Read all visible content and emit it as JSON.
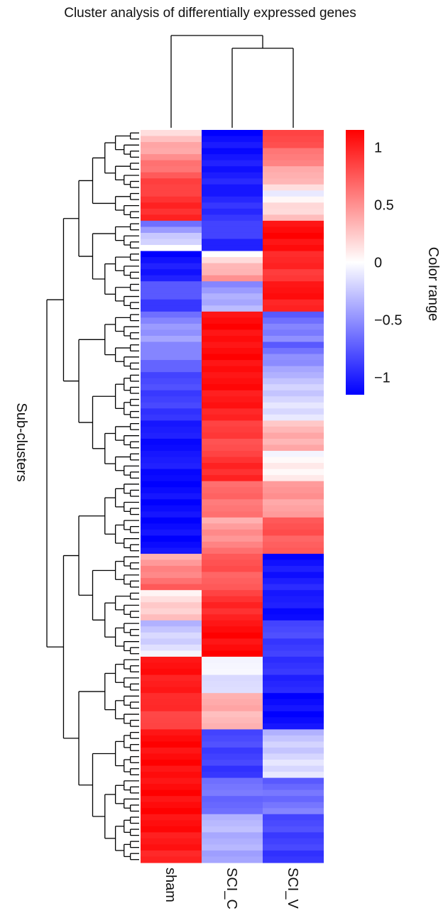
{
  "chart_data": {
    "type": "heatmap",
    "title": "Cluster analysis of differentially expressed genes",
    "ylabel": "Sub-clusters",
    "columns": [
      "sham",
      "SCI_C",
      "SCI_V"
    ],
    "color_scale": {
      "label": "Color range",
      "min": -1.15,
      "max": 1.15,
      "ticks": [
        1,
        0.5,
        0,
        -0.5,
        -1
      ],
      "tick_labels": [
        "1",
        "0.5",
        "0",
        "−0.5",
        "−1"
      ],
      "low_color": "#0000ff",
      "mid_color": "#ffffff",
      "high_color": "#ff0000"
    },
    "row_blocks": [
      {
        "rows": 10,
        "sham": [
          0.2,
          0.9
        ],
        "SCI_C": [
          -1.1,
          -1.0
        ],
        "SCI_V": [
          0.9,
          0.2
        ]
      },
      {
        "rows": 5,
        "sham": [
          0.9,
          1.0
        ],
        "SCI_C": [
          -1.0,
          -0.9
        ],
        "SCI_V": [
          -0.05,
          0.3
        ]
      },
      {
        "rows": 5,
        "sham": [
          -0.6,
          0.0
        ],
        "SCI_C": [
          -0.8,
          -1.0
        ],
        "SCI_V": [
          1.1,
          1.1
        ]
      },
      {
        "rows": 5,
        "sham": [
          -1.1,
          -1.0
        ],
        "SCI_C": [
          0.05,
          0.5
        ],
        "SCI_V": [
          1.0,
          0.9
        ]
      },
      {
        "rows": 5,
        "sham": [
          -0.7,
          -0.9
        ],
        "SCI_C": [
          -0.5,
          -0.3
        ],
        "SCI_V": [
          1.1,
          1.0
        ]
      },
      {
        "rows": 5,
        "sham": [
          -0.6,
          -0.4
        ],
        "SCI_C": [
          1.1,
          1.1
        ],
        "SCI_V": [
          -0.7,
          -0.5
        ]
      },
      {
        "rows": 5,
        "sham": [
          -0.5,
          -0.7
        ],
        "SCI_C": [
          1.1,
          1.1
        ],
        "SCI_V": [
          -0.7,
          -0.4
        ]
      },
      {
        "rows": 8,
        "sham": [
          -0.8,
          -0.9
        ],
        "SCI_C": [
          1.1,
          1.0
        ],
        "SCI_V": [
          -0.3,
          -0.1
        ]
      },
      {
        "rows": 5,
        "sham": [
          -1.0,
          -1.1
        ],
        "SCI_C": [
          0.9,
          0.8
        ],
        "SCI_V": [
          0.3,
          0.4
        ]
      },
      {
        "rows": 5,
        "sham": [
          -1.0,
          -1.1
        ],
        "SCI_C": [
          0.9,
          1.0
        ],
        "SCI_V": [
          0.0,
          0.1
        ]
      },
      {
        "rows": 6,
        "sham": [
          -1.1,
          -1.1
        ],
        "SCI_C": [
          0.7,
          0.6
        ],
        "SCI_V": [
          0.5,
          0.4
        ]
      },
      {
        "rows": 6,
        "sham": [
          -1.1,
          -1.1
        ],
        "SCI_C": [
          0.4,
          0.6
        ],
        "SCI_V": [
          0.8,
          0.7
        ]
      },
      {
        "rows": 6,
        "sham": [
          0.4,
          0.7
        ],
        "SCI_C": [
          0.8,
          0.7
        ],
        "SCI_V": [
          -1.1,
          -1.0
        ]
      },
      {
        "rows": 5,
        "sham": [
          0.1,
          0.3
        ],
        "SCI_C": [
          0.9,
          1.0
        ],
        "SCI_V": [
          -1.0,
          -1.1
        ]
      },
      {
        "rows": 6,
        "sham": [
          -0.3,
          -0.1
        ],
        "SCI_C": [
          1.1,
          1.1
        ],
        "SCI_V": [
          -0.8,
          -0.9
        ]
      },
      {
        "rows": 6,
        "sham": [
          1.1,
          1.0
        ],
        "SCI_C": [
          0.0,
          -0.2
        ],
        "SCI_V": [
          -0.9,
          -1.0
        ]
      },
      {
        "rows": 6,
        "sham": [
          1.0,
          0.8
        ],
        "SCI_C": [
          0.4,
          0.3
        ],
        "SCI_V": [
          -1.1,
          -1.1
        ]
      },
      {
        "rows": 8,
        "sham": [
          1.1,
          1.1
        ],
        "SCI_C": [
          -0.8,
          -0.9
        ],
        "SCI_V": [
          -0.3,
          -0.1
        ]
      },
      {
        "rows": 6,
        "sham": [
          1.1,
          1.1
        ],
        "SCI_C": [
          -0.6,
          -0.7
        ],
        "SCI_V": [
          -0.7,
          -0.6
        ]
      },
      {
        "rows": 8,
        "sham": [
          1.1,
          1.0
        ],
        "SCI_C": [
          -0.3,
          -0.4
        ],
        "SCI_V": [
          -0.8,
          -0.9
        ]
      }
    ]
  }
}
